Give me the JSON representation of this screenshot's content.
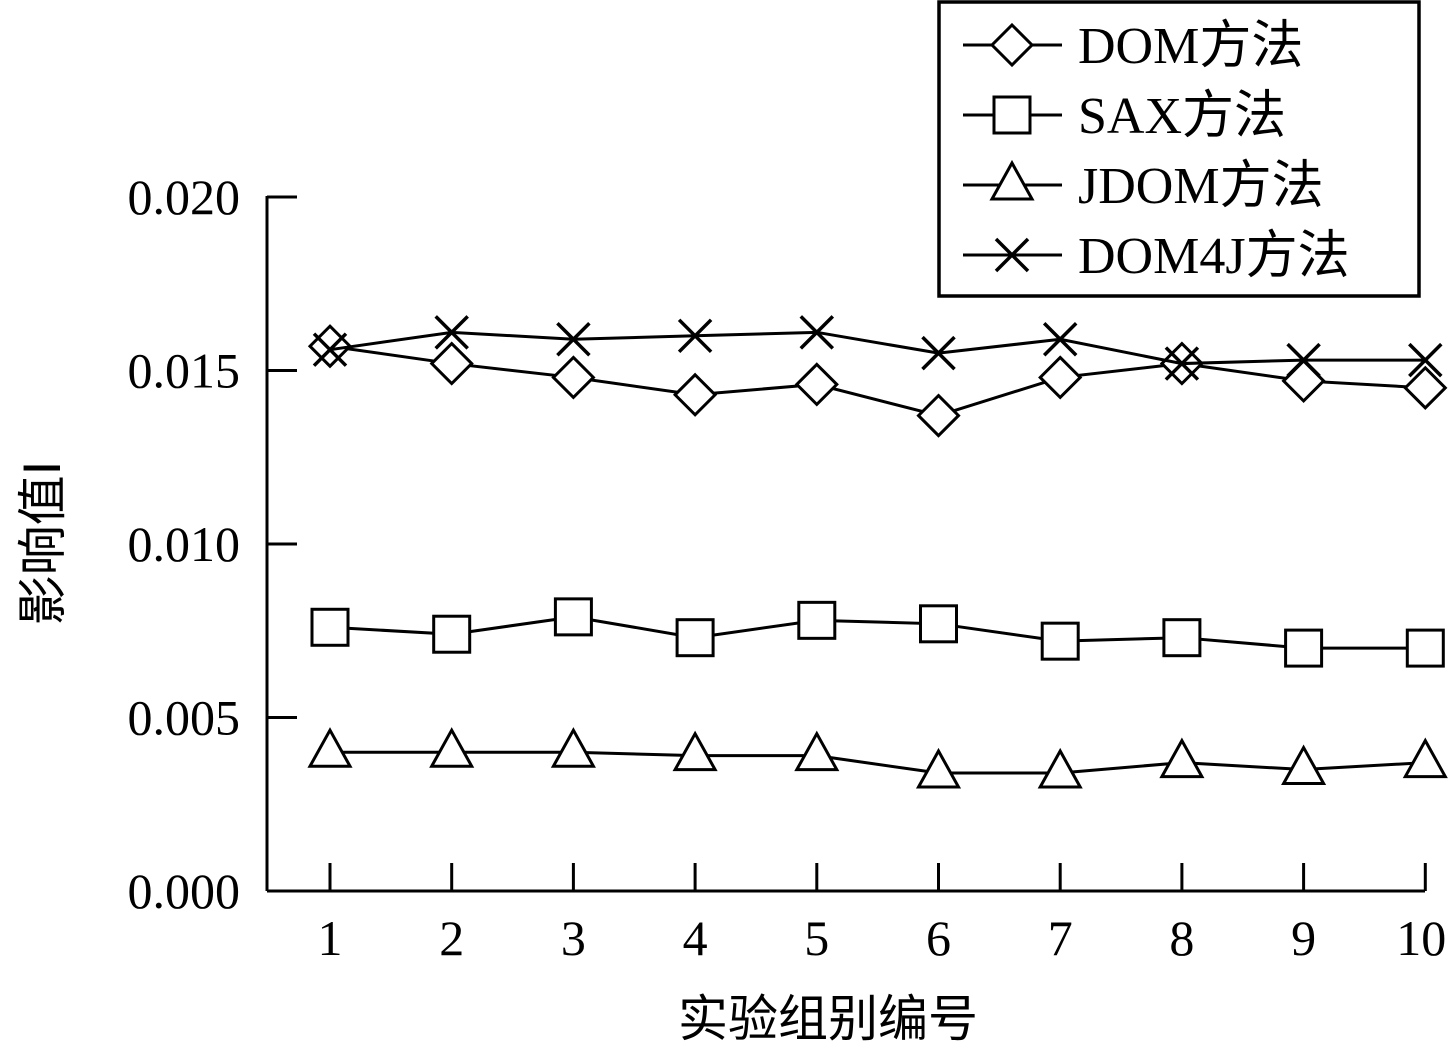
{
  "chart_data": {
    "type": "line",
    "xlabel": "实验组别编号",
    "ylabel": "影响值I",
    "x": [
      1,
      2,
      3,
      4,
      5,
      6,
      7,
      8,
      9,
      10
    ],
    "x_ticks": [
      "1",
      "2",
      "3",
      "4",
      "5",
      "6",
      "7",
      "8",
      "9",
      "10"
    ],
    "ylim": [
      0,
      0.02
    ],
    "y_ticks": [
      "0.000",
      "0.005",
      "0.010",
      "0.015",
      "0.020"
    ],
    "grid": false,
    "legend_position": "top-right",
    "series": [
      {
        "name": "DOM方法",
        "marker": "diamond",
        "values": [
          0.0157,
          0.0152,
          0.0148,
          0.0143,
          0.0146,
          0.0137,
          0.0148,
          0.0152,
          0.0147,
          0.0145
        ]
      },
      {
        "name": "SAX方法",
        "marker": "square",
        "values": [
          0.0076,
          0.0074,
          0.0079,
          0.0073,
          0.0078,
          0.0077,
          0.0072,
          0.0073,
          0.007,
          0.007
        ]
      },
      {
        "name": "JDOM方法",
        "marker": "triangle",
        "values": [
          0.004,
          0.004,
          0.004,
          0.0039,
          0.0039,
          0.0034,
          0.0034,
          0.0037,
          0.0035,
          0.0037
        ]
      },
      {
        "name": "DOM4J方法",
        "marker": "x",
        "values": [
          0.0156,
          0.0161,
          0.0159,
          0.016,
          0.0161,
          0.0155,
          0.0159,
          0.0152,
          0.0153,
          0.0153
        ]
      }
    ]
  }
}
